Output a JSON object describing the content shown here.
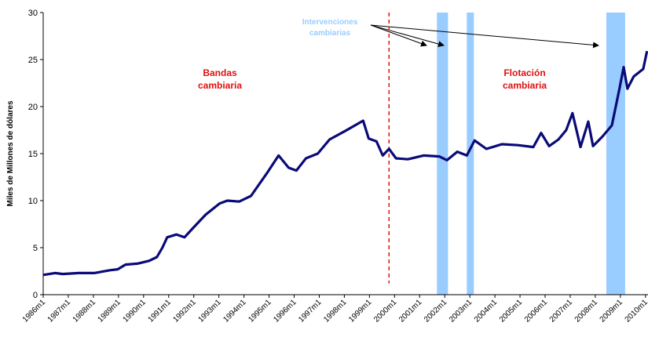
{
  "chart_data": {
    "type": "line",
    "y_label": "Miles de Millones de dólares",
    "annotations": [
      "Intervenciones",
      "cambiarias",
      "Bandas",
      "cambiaria",
      "Flotación",
      "cambiaria"
    ],
    "x": [
      1986.0,
      1986.47,
      1986.78,
      1987.41,
      1988.03,
      1988.66,
      1988.97,
      1989.28,
      1989.75,
      1990.22,
      1990.53,
      1990.75,
      1990.94,
      1991.31,
      1991.63,
      1991.94,
      1992.47,
      1993.03,
      1993.34,
      1993.81,
      1994.28,
      1994.91,
      1995.38,
      1995.78,
      1996.09,
      1996.47,
      1996.94,
      1997.41,
      1998.03,
      1998.75,
      1998.97,
      1999.28,
      1999.53,
      1999.78,
      2000.06,
      2000.53,
      2001.16,
      2001.78,
      2002.09,
      2002.5,
      2002.88,
      2003.19,
      2003.66,
      2004.28,
      2004.91,
      2005.53,
      2005.84,
      2006.16,
      2006.53,
      2006.84,
      2007.09,
      2007.41,
      2007.72,
      2007.91,
      2008.28,
      2008.66,
      2008.97,
      2009.13,
      2009.28,
      2009.53,
      2009.91,
      2010.06
    ],
    "series": [
      {
        "color": "#0a0a78",
        "values": [
          2.1,
          2.3,
          2.2,
          2.3,
          2.3,
          2.6,
          2.7,
          3.2,
          3.3,
          3.6,
          4.0,
          5.0,
          6.1,
          6.4,
          6.1,
          7.0,
          8.5,
          9.7,
          10.0,
          9.9,
          10.5,
          12.9,
          14.8,
          13.5,
          13.2,
          14.5,
          15.0,
          16.5,
          17.4,
          18.5,
          16.6,
          16.3,
          14.8,
          15.5,
          14.5,
          14.4,
          14.8,
          14.7,
          14.3,
          15.2,
          14.8,
          16.4,
          15.5,
          16.0,
          15.9,
          15.7,
          17.2,
          15.8,
          16.5,
          17.5,
          19.3,
          15.7,
          18.4,
          15.8,
          16.8,
          18.0,
          22.0,
          24.2,
          21.9,
          23.2,
          24.0,
          25.9
        ]
      }
    ],
    "bands": [
      [
        2001.69,
        2002.13
      ],
      [
        2002.88,
        2003.16
      ],
      [
        2008.44,
        2009.19
      ]
    ],
    "band_color": "#99ccff",
    "vline": 1999.78,
    "vline_color": "#e01010",
    "xlim": [
      1986,
      2010.1
    ],
    "xticks": [
      {
        "value": 1986,
        "label": "1986m1"
      },
      {
        "value": 1987,
        "label": "1987m1"
      },
      {
        "value": 1988,
        "label": "1988m1"
      },
      {
        "value": 1989,
        "label": "1989m1"
      },
      {
        "value": 1990,
        "label": "1990m1"
      },
      {
        "value": 1991,
        "label": "1991m1"
      },
      {
        "value": 1992,
        "label": "1992m1"
      },
      {
        "value": 1993,
        "label": "1993m1"
      },
      {
        "value": 1994,
        "label": "1994m1"
      },
      {
        "value": 1995,
        "label": "1995m1"
      },
      {
        "value": 1996,
        "label": "1996m1"
      },
      {
        "value": 1997,
        "label": "1997m1"
      },
      {
        "value": 1998,
        "label": "1998m1"
      },
      {
        "value": 1999,
        "label": "1999m1"
      },
      {
        "value": 2000,
        "label": "2000m1"
      },
      {
        "value": 2001,
        "label": "2001m1"
      },
      {
        "value": 2002,
        "label": "2002m1"
      },
      {
        "value": 2003,
        "label": "2003m1"
      },
      {
        "value": 2004,
        "label": "2004m1"
      },
      {
        "value": 2005,
        "label": "2005m1"
      },
      {
        "value": 2006,
        "label": "2006m1"
      },
      {
        "value": 2007,
        "label": "2007m1"
      },
      {
        "value": 2008,
        "label": "2008m1"
      },
      {
        "value": 2009,
        "label": "2009m1"
      },
      {
        "value": 2010,
        "label": "2010m1"
      }
    ],
    "ylim": [
      0,
      30
    ],
    "yticks": [
      0,
      5,
      10,
      15,
      20,
      25,
      30
    ],
    "grid": false
  }
}
